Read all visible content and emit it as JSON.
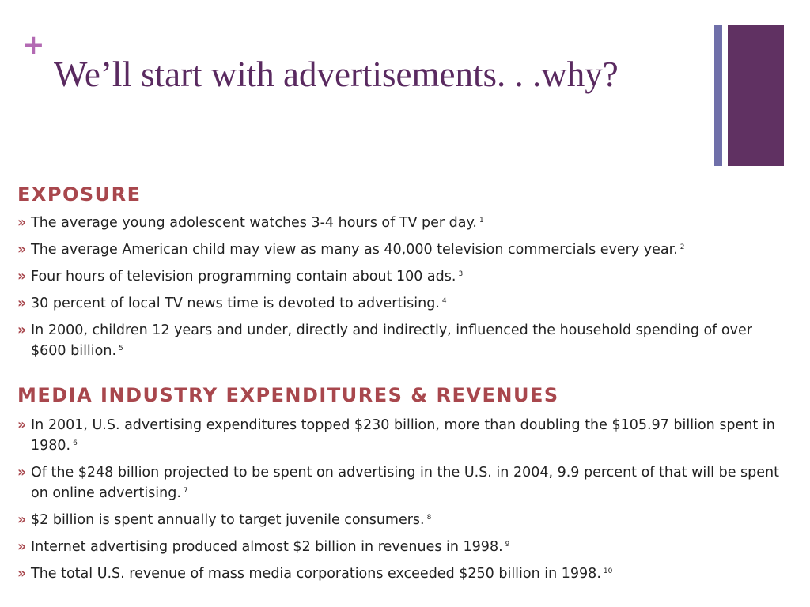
{
  "slide": {
    "plus_symbol": "+",
    "title": "We’ll start with advertisements. . .why?"
  },
  "exposure": {
    "heading": "EXPOSURE",
    "items": [
      {
        "text": "The average young adolescent watches 3-4 hours of TV per day.",
        "ref": "1"
      },
      {
        "text": "The average American child may view as many as 40,000 television commercials every year.",
        "ref": "2"
      },
      {
        "text": "Four hours of television programming contain about 100 ads.",
        "ref": "3"
      },
      {
        "text": "30 percent of local TV news time is devoted to advertising.",
        "ref": "4"
      },
      {
        "text": "In 2000, children 12 years and under, directly and indirectly, influenced the household spending of over $600 billion.",
        "ref": "5"
      }
    ]
  },
  "media": {
    "heading": "MEDIA INDUSTRY EXPENDITURES & REVENUES",
    "items": [
      {
        "text": "In 2001, U.S. advertising expenditures topped $230 billion, more than doubling the $105.97 billion spent in 1980.",
        "ref": "6"
      },
      {
        "text": "Of the $248 billion projected to be spent on advertising in the U.S. in 2004, 9.9 percent of that will be spent on online advertising.",
        "ref": "7"
      },
      {
        "text": "$2 billion is spent annually to target juvenile consumers.",
        "ref": "8"
      },
      {
        "text": "Internet advertising produced almost $2 billion in revenues in 1998.",
        "ref": "9"
      },
      {
        "text": "The total U.S. revenue of mass media corporations exceeded $250 billion in 1998.",
        "ref": "10"
      }
    ]
  },
  "bullet_marker": "»",
  "colors": {
    "title": "#5a2a60",
    "plus": "#b36ab3",
    "heading": "#a8474d",
    "bar_thin": "#6f6fa9",
    "bar_thick": "#603162"
  }
}
